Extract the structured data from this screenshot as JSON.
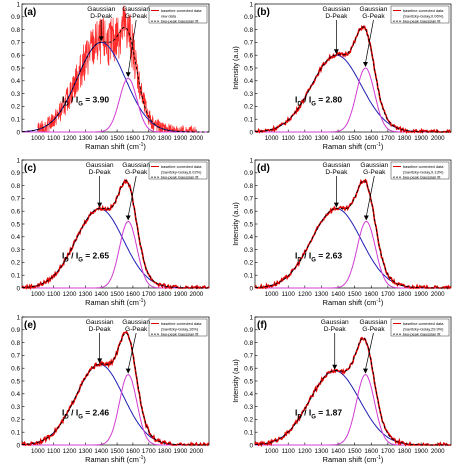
{
  "figure": {
    "xlabel_main": "Raman shift (cm",
    "xlabel_sup": "-1",
    "xlabel_close": ")",
    "ylabel": "Intensity (a.u)",
    "d_label_line1": "Gaussian",
    "d_label_line2": "D-Peak",
    "g_label_line1": "Gaussian",
    "g_label_line2": "G-Peak",
    "ratio_D": "D",
    "ratio_G": "G",
    "ratio_I": "I",
    "ratio_slash": " / ",
    "colors": {
      "data": "#e00000",
      "fit": "#000000",
      "d_peak": "#1f1fb4",
      "g_peak": "#d23cd2",
      "noise_band": "#ff2a2a"
    }
  },
  "chart_data": [
    {
      "type": "line",
      "panel": "(a)",
      "ratio": "3.90",
      "legend": [
        "baseline corrected data",
        "raw data",
        "two-peak Gaussian fit"
      ],
      "xlim": [
        900,
        2080
      ],
      "ylim": [
        0,
        1.0
      ],
      "xticks": [
        "1000",
        "1100",
        "1200",
        "1300",
        "1400",
        "1500",
        "1600",
        "1700",
        "1800",
        "1900",
        "2000"
      ],
      "yticks": [
        "0",
        "0.1",
        "0.2",
        "0.3",
        "0.4",
        "0.5",
        "0.6",
        "0.7",
        "0.8",
        "0.9",
        "1"
      ],
      "d_peak": {
        "center": 1400,
        "height": 0.7,
        "sigma": 150
      },
      "g_peak": {
        "center": 1570,
        "height": 0.42,
        "sigma": 55
      },
      "noisy": true
    },
    {
      "type": "line",
      "panel": "(b)",
      "ratio": "2.80",
      "legend": [
        "baseline corrected data",
        "(Savitzky-Golay,0.06%)",
        "two-peak Gaussian fit"
      ],
      "xlim": [
        900,
        2080
      ],
      "ylim": [
        0,
        1.0
      ],
      "xticks": [
        "1000",
        "1100",
        "1200",
        "1300",
        "1400",
        "1500",
        "1600",
        "1700",
        "1800",
        "1900",
        "2000"
      ],
      "yticks": [
        "0",
        "0.1",
        "0.2",
        "0.3",
        "0.4",
        "0.5",
        "0.6",
        "0.7",
        "0.8",
        "0.9",
        "1"
      ],
      "d_peak": {
        "center": 1390,
        "height": 0.6,
        "sigma": 150
      },
      "g_peak": {
        "center": 1565,
        "height": 0.5,
        "sigma": 55
      },
      "noisy": false
    },
    {
      "type": "line",
      "panel": "(c)",
      "ratio": "2.65",
      "legend": [
        "baseline corrected data",
        "(Savitzky-Golay,6.02%)",
        "two-peak Gaussian fit"
      ],
      "xlim": [
        900,
        2080
      ],
      "ylim": [
        0,
        1.0
      ],
      "xticks": [
        "1000",
        "1100",
        "1200",
        "1300",
        "1400",
        "1500",
        "1600",
        "1700",
        "1800",
        "1900",
        "2000"
      ],
      "yticks": [
        "0",
        "0.1",
        "0.2",
        "0.3",
        "0.4",
        "0.5",
        "0.6",
        "0.7",
        "0.8",
        "0.9",
        "1"
      ],
      "d_peak": {
        "center": 1390,
        "height": 0.62,
        "sigma": 150
      },
      "g_peak": {
        "center": 1570,
        "height": 0.52,
        "sigma": 55
      },
      "noisy": false
    },
    {
      "type": "line",
      "panel": "(d)",
      "ratio": "2.63",
      "legend": [
        "baseline corrected data",
        "(Savitzky-Golay,9.13%)",
        "two-peak Gaussian fit"
      ],
      "xlim": [
        900,
        2080
      ],
      "ylim": [
        0,
        1.0
      ],
      "xticks": [
        "1000",
        "1100",
        "1200",
        "1300",
        "1400",
        "1500",
        "1600",
        "1700",
        "1800",
        "1900",
        "2000"
      ],
      "yticks": [
        "0",
        "0.1",
        "0.2",
        "0.3",
        "0.4",
        "0.5",
        "0.6",
        "0.7",
        "0.8",
        "0.9",
        "1"
      ],
      "d_peak": {
        "center": 1390,
        "height": 0.62,
        "sigma": 150
      },
      "g_peak": {
        "center": 1570,
        "height": 0.52,
        "sigma": 55
      },
      "noisy": false
    },
    {
      "type": "line",
      "panel": "(e)",
      "ratio": "2.46",
      "legend": [
        "baseline corrected data",
        "(Savitzky-Golay,16%)",
        "two-peak Gaussian fit"
      ],
      "xlim": [
        900,
        2080
      ],
      "ylim": [
        0,
        1.0
      ],
      "xticks": [
        "1000",
        "1100",
        "1200",
        "1300",
        "1400",
        "1500",
        "1600",
        "1700",
        "1800",
        "1900",
        "2000"
      ],
      "yticks": [
        "0",
        "0.1",
        "0.2",
        "0.3",
        "0.4",
        "0.5",
        "0.6",
        "0.7",
        "0.8",
        "0.9",
        "1"
      ],
      "d_peak": {
        "center": 1390,
        "height": 0.63,
        "sigma": 150
      },
      "g_peak": {
        "center": 1570,
        "height": 0.55,
        "sigma": 55
      },
      "noisy": false
    },
    {
      "type": "line",
      "panel": "(f)",
      "ratio": "1.87",
      "legend": [
        "baseline corrected data",
        "(Savitzky-Golay,29.9%)",
        "two-peak Gaussian fit"
      ],
      "xlim": [
        900,
        2080
      ],
      "ylim": [
        0,
        1.0
      ],
      "xticks": [
        "1000",
        "1100",
        "1200",
        "1300",
        "1400",
        "1500",
        "1600",
        "1700",
        "1800",
        "1900",
        "2000"
      ],
      "yticks": [
        "0",
        "0.1",
        "0.2",
        "0.3",
        "0.4",
        "0.5",
        "0.6",
        "0.7",
        "0.8",
        "0.9",
        "1"
      ],
      "d_peak": {
        "center": 1380,
        "height": 0.58,
        "sigma": 150
      },
      "g_peak": {
        "center": 1565,
        "height": 0.55,
        "sigma": 55
      },
      "noisy": false
    }
  ]
}
